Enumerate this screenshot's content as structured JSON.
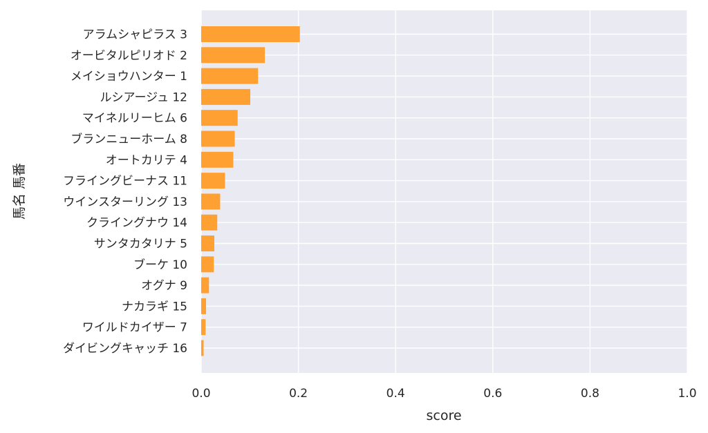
{
  "chart_data": {
    "type": "bar",
    "orientation": "horizontal",
    "xlabel": "score",
    "ylabel": "馬名 馬番",
    "xlim": [
      0.0,
      1.0
    ],
    "xticks": [
      "0.0",
      "0.2",
      "0.4",
      "0.6",
      "0.8",
      "1.0"
    ],
    "grid": true,
    "colors": {
      "bar": "#ffa033",
      "background": "#eaeaf2",
      "grid": "#ffffff"
    },
    "categories": [
      "アラムシャピラス 3",
      "オービタルピリオド 2",
      "メイショウハンター 1",
      "ルシアージュ 12",
      "マイネルリーヒム 6",
      "ブランニューホーム 8",
      "オートカリテ 4",
      "フライングビーナス 11",
      "ウインスターリング 13",
      "クライングナウ 14",
      "サンタカタリナ 5",
      "ブーケ 10",
      "オグナ 9",
      "ナカラギ 15",
      "ワイルドカイザー 7",
      "ダイビングキャッチ 16"
    ],
    "values": [
      0.203,
      0.131,
      0.117,
      0.101,
      0.075,
      0.069,
      0.066,
      0.049,
      0.039,
      0.033,
      0.027,
      0.026,
      0.016,
      0.01,
      0.009,
      0.005
    ]
  }
}
